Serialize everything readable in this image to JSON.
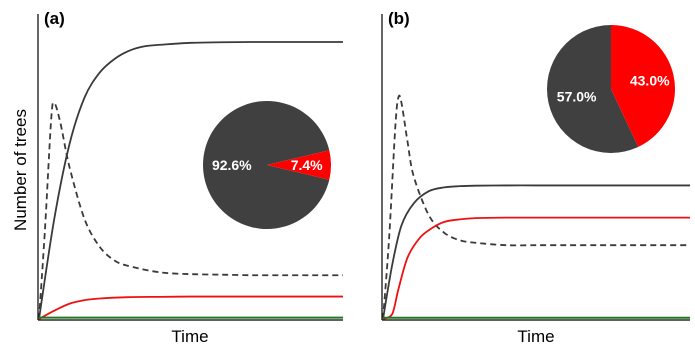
{
  "figure": {
    "ylabel": "Number of trees",
    "xlabel": "Time"
  },
  "colors": {
    "dark": "#3a3a3a",
    "red": "#ee1111",
    "green": "#1f7a1f",
    "pie_dark": "#404040",
    "pie_red": "#ff0000"
  },
  "chart_data": [
    {
      "panel": "(a)",
      "type": "line",
      "xlabel": "Time",
      "ylabel": "Number of trees",
      "xlim": [
        0,
        10
      ],
      "ylim": [
        0,
        1
      ],
      "grid": false,
      "series": [
        {
          "style": "dark-solid",
          "x": [
            0,
            0.5,
            1,
            1.5,
            2,
            2.5,
            3,
            3.5,
            4,
            5,
            6,
            7,
            8,
            9,
            10
          ],
          "y": [
            0,
            0.36,
            0.63,
            0.8,
            0.89,
            0.94,
            0.97,
            0.985,
            0.99,
            0.997,
            0.999,
            1.0,
            1.0,
            1.0,
            1.0
          ]
        },
        {
          "style": "dark-dashed",
          "x": [
            0,
            0.2,
            0.4,
            0.5,
            0.7,
            1,
            1.5,
            2,
            2.5,
            3,
            4,
            5,
            6,
            7,
            8,
            9,
            10
          ],
          "y": [
            0,
            0.33,
            0.72,
            0.78,
            0.71,
            0.55,
            0.36,
            0.26,
            0.21,
            0.19,
            0.168,
            0.162,
            0.16,
            0.158,
            0.158,
            0.158,
            0.158
          ]
        },
        {
          "style": "red-solid",
          "x": [
            0,
            0.5,
            1,
            1.5,
            2,
            3,
            4,
            5,
            6,
            7,
            8,
            9,
            10
          ],
          "y": [
            0,
            0.03,
            0.055,
            0.068,
            0.074,
            0.079,
            0.08,
            0.081,
            0.081,
            0.081,
            0.081,
            0.081,
            0.081
          ]
        },
        {
          "style": "green-solid",
          "x": [
            0,
            10
          ],
          "y": [
            0.005,
            0.005
          ]
        }
      ],
      "pie": {
        "slices": [
          {
            "label": "92.6%",
            "value": 92.6,
            "color": "dark"
          },
          {
            "label": "7.4%",
            "value": 7.4,
            "color": "red"
          }
        ]
      }
    },
    {
      "panel": "(b)",
      "type": "line",
      "xlabel": "Time",
      "ylabel": "",
      "xlim": [
        0,
        10
      ],
      "ylim": [
        0,
        1
      ],
      "grid": false,
      "series": [
        {
          "style": "dark-dashed",
          "x": [
            0,
            0.2,
            0.4,
            0.5,
            0.6,
            0.8,
            1,
            1.5,
            2,
            2.5,
            3,
            4,
            5,
            6,
            7,
            8,
            9,
            10
          ],
          "y": [
            0,
            0.33,
            0.78,
            0.9,
            0.88,
            0.72,
            0.58,
            0.42,
            0.35,
            0.32,
            0.31,
            0.3,
            0.3,
            0.3,
            0.3,
            0.3,
            0.3,
            0.3
          ]
        },
        {
          "style": "dark-solid",
          "x": [
            0,
            0.3,
            0.6,
            1,
            1.5,
            2,
            2.5,
            3,
            4,
            5,
            6,
            7,
            8,
            9,
            10
          ],
          "y": [
            0,
            0.22,
            0.38,
            0.47,
            0.52,
            0.535,
            0.54,
            0.542,
            0.543,
            0.543,
            0.543,
            0.543,
            0.543,
            0.543,
            0.543
          ]
        },
        {
          "style": "red-solid",
          "x": [
            0,
            0.3,
            0.5,
            0.8,
            1.2,
            1.6,
            2,
            2.5,
            3,
            4,
            5,
            6,
            7,
            8,
            9,
            10
          ],
          "y": [
            0,
            0.02,
            0.12,
            0.25,
            0.33,
            0.37,
            0.395,
            0.405,
            0.41,
            0.412,
            0.412,
            0.412,
            0.412,
            0.412,
            0.412,
            0.412
          ]
        },
        {
          "style": "green-solid",
          "x": [
            0,
            10
          ],
          "y": [
            0.005,
            0.005
          ]
        }
      ],
      "pie": {
        "slices": [
          {
            "label": "57.0%",
            "value": 57.0,
            "color": "dark"
          },
          {
            "label": "43.0%",
            "value": 43.0,
            "color": "red"
          }
        ]
      }
    }
  ]
}
